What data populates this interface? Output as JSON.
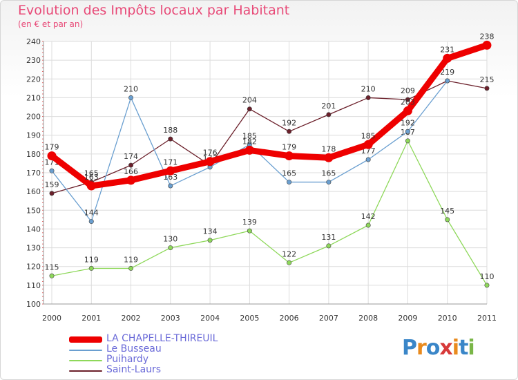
{
  "title": "Evolution des Impôts locaux par Habitant",
  "subtitle": "(en € et par an)",
  "logo": "Proxiti",
  "chart_data": {
    "type": "line",
    "categories": [
      "2000",
      "2001",
      "2002",
      "2003",
      "2004",
      "2005",
      "2006",
      "2007",
      "2008",
      "2009",
      "2010",
      "2011"
    ],
    "ylim": [
      100,
      240
    ],
    "yticks": [
      100,
      110,
      120,
      130,
      140,
      150,
      160,
      170,
      180,
      190,
      200,
      210,
      220,
      230,
      240
    ],
    "grid": true,
    "legend_position": "bottom-left",
    "series": [
      {
        "name": "Saint-Laurs",
        "color": "#6b1f2a",
        "values": [
          159,
          165,
          174,
          188,
          174,
          204,
          192,
          201,
          210,
          209,
          219,
          215
        ],
        "labels": [
          "159",
          "165",
          "174",
          "188",
          "",
          "204",
          "192",
          "201",
          "210",
          "209",
          "219",
          "215"
        ]
      },
      {
        "name": "Puihardy",
        "color": "#8ed85a",
        "values": [
          115,
          119,
          119,
          130,
          134,
          139,
          122,
          131,
          142,
          187,
          145,
          110
        ],
        "labels": [
          "115",
          "119",
          "119",
          "130",
          "134",
          "139",
          "122",
          "131",
          "142",
          "187",
          "145",
          "110"
        ]
      },
      {
        "name": "Le Busseau",
        "color": "#6a9fd0",
        "values": [
          171,
          144,
          210,
          163,
          173,
          185,
          165,
          165,
          177,
          192,
          219,
          null
        ],
        "labels": [
          "171",
          "144",
          "210",
          "163",
          "173",
          "185",
          "165",
          "165",
          "177",
          "192",
          "",
          ""
        ]
      },
      {
        "name": "LA CHAPELLE-THIREUIL",
        "color": "#ee0000",
        "values": [
          179,
          163,
          166,
          171,
          176,
          182,
          179,
          178,
          185,
          203,
          231,
          238
        ],
        "labels": [
          "179",
          "163",
          "166",
          "171",
          "176",
          "182",
          "179",
          "178",
          "185",
          "203",
          "231",
          "238"
        ]
      }
    ]
  }
}
